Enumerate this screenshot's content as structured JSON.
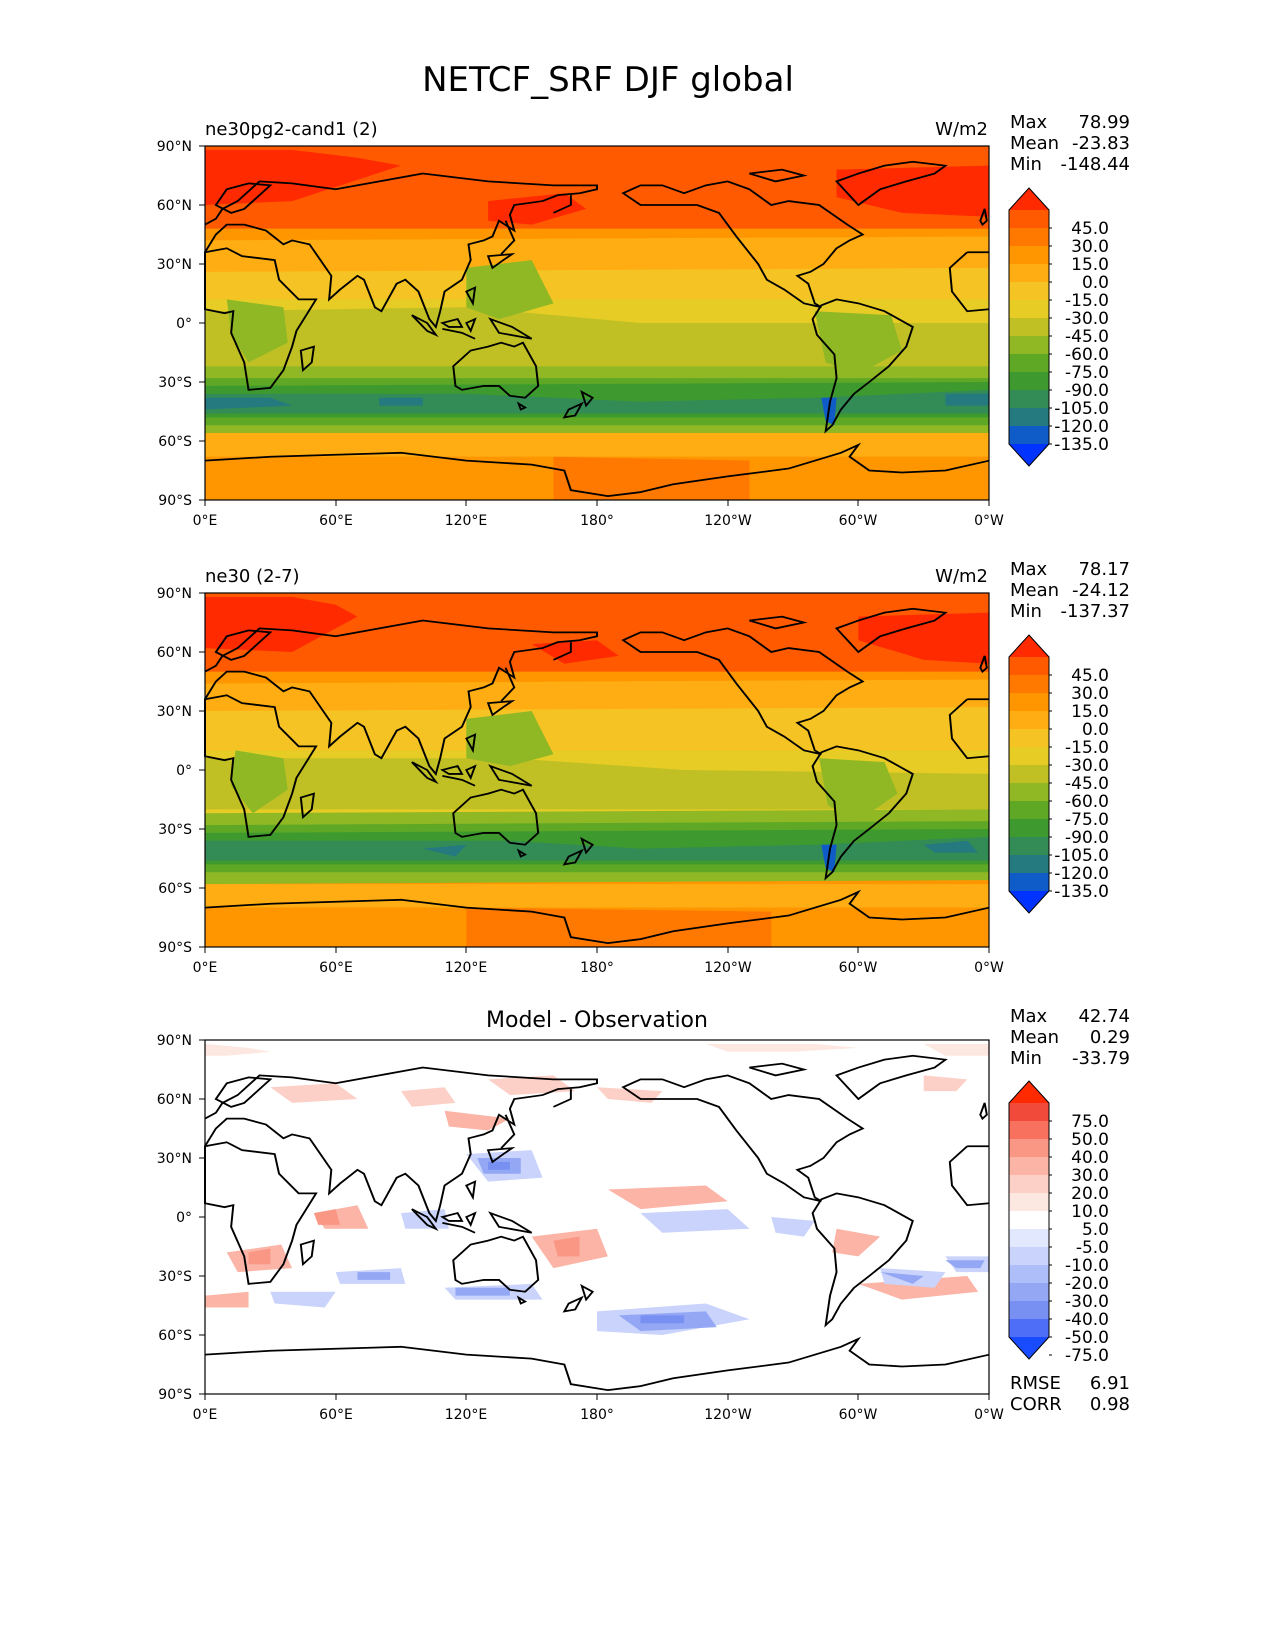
{
  "title": "NETCF_SRF DJF global",
  "x_ticks": [
    "0°E",
    "60°E",
    "120°E",
    "180°",
    "120°W",
    "60°W",
    "0°W"
  ],
  "y_ticks": [
    "90°N",
    "60°N",
    "30°N",
    "0°",
    "30°S",
    "60°S",
    "90°S"
  ],
  "panels": [
    {
      "left_title": "ne30pg2-cand1 (2)",
      "center_title": "",
      "units": "W/m2",
      "stats": [
        {
          "label": "Max",
          "value": "78.99"
        },
        {
          "label": "Mean",
          "value": "-23.83"
        },
        {
          "label": "Min",
          "value": "-148.44"
        }
      ],
      "footer_stats": [],
      "colorbar_labels": [
        "45.0",
        "30.0",
        "15.0",
        "0.0",
        "-15.0",
        "-30.0",
        "-45.0",
        "-60.0",
        "-75.0",
        "-90.0",
        "-105.0",
        "-120.0",
        "-135.0"
      ],
      "colorbar_colors": [
        "#ff2a00",
        "#ff5a00",
        "#ff7800",
        "#ff9600",
        "#ffad12",
        "#f5c323",
        "#e6cc25",
        "#c0c025",
        "#8fb824",
        "#5ea826",
        "#3e9a2e",
        "#338b56",
        "#247a7e",
        "#0f5cc9",
        "#0033ff"
      ]
    },
    {
      "left_title": "ne30 (2-7)",
      "center_title": "",
      "units": "W/m2",
      "stats": [
        {
          "label": "Max",
          "value": "78.17"
        },
        {
          "label": "Mean",
          "value": "-24.12"
        },
        {
          "label": "Min",
          "value": "-137.37"
        }
      ],
      "footer_stats": [],
      "colorbar_labels": [
        "45.0",
        "30.0",
        "15.0",
        "0.0",
        "-15.0",
        "-30.0",
        "-45.0",
        "-60.0",
        "-75.0",
        "-90.0",
        "-105.0",
        "-120.0",
        "-135.0"
      ],
      "colorbar_colors": [
        "#ff2a00",
        "#ff5a00",
        "#ff7800",
        "#ff9600",
        "#ffad12",
        "#f5c323",
        "#e6cc25",
        "#c0c025",
        "#8fb824",
        "#5ea826",
        "#3e9a2e",
        "#338b56",
        "#247a7e",
        "#0f5cc9",
        "#0033ff"
      ]
    },
    {
      "left_title": "",
      "center_title": "Model - Observation",
      "units": "",
      "stats": [
        {
          "label": "Max",
          "value": "42.74"
        },
        {
          "label": "Mean",
          "value": "0.29"
        },
        {
          "label": "Min",
          "value": "-33.79"
        }
      ],
      "footer_stats": [
        {
          "label": "RMSE",
          "value": "6.91"
        },
        {
          "label": "CORR",
          "value": "0.98"
        }
      ],
      "colorbar_labels": [
        "75.0",
        "50.0",
        "40.0",
        "30.0",
        "20.0",
        "10.0",
        "5.0",
        "-5.0",
        "-10.0",
        "-20.0",
        "-30.0",
        "-40.0",
        "-50.0",
        "-75.0"
      ],
      "colorbar_colors": [
        "#ff2a00",
        "#f24a3a",
        "#f7715e",
        "#fa9784",
        "#fbb4a6",
        "#fcd0c6",
        "#fde7e1",
        "#ffffff",
        "#e2e8fd",
        "#c9d3fb",
        "#aebef8",
        "#93a7f5",
        "#7790f2",
        "#4f6ef7",
        "#1a4cff"
      ]
    }
  ]
}
